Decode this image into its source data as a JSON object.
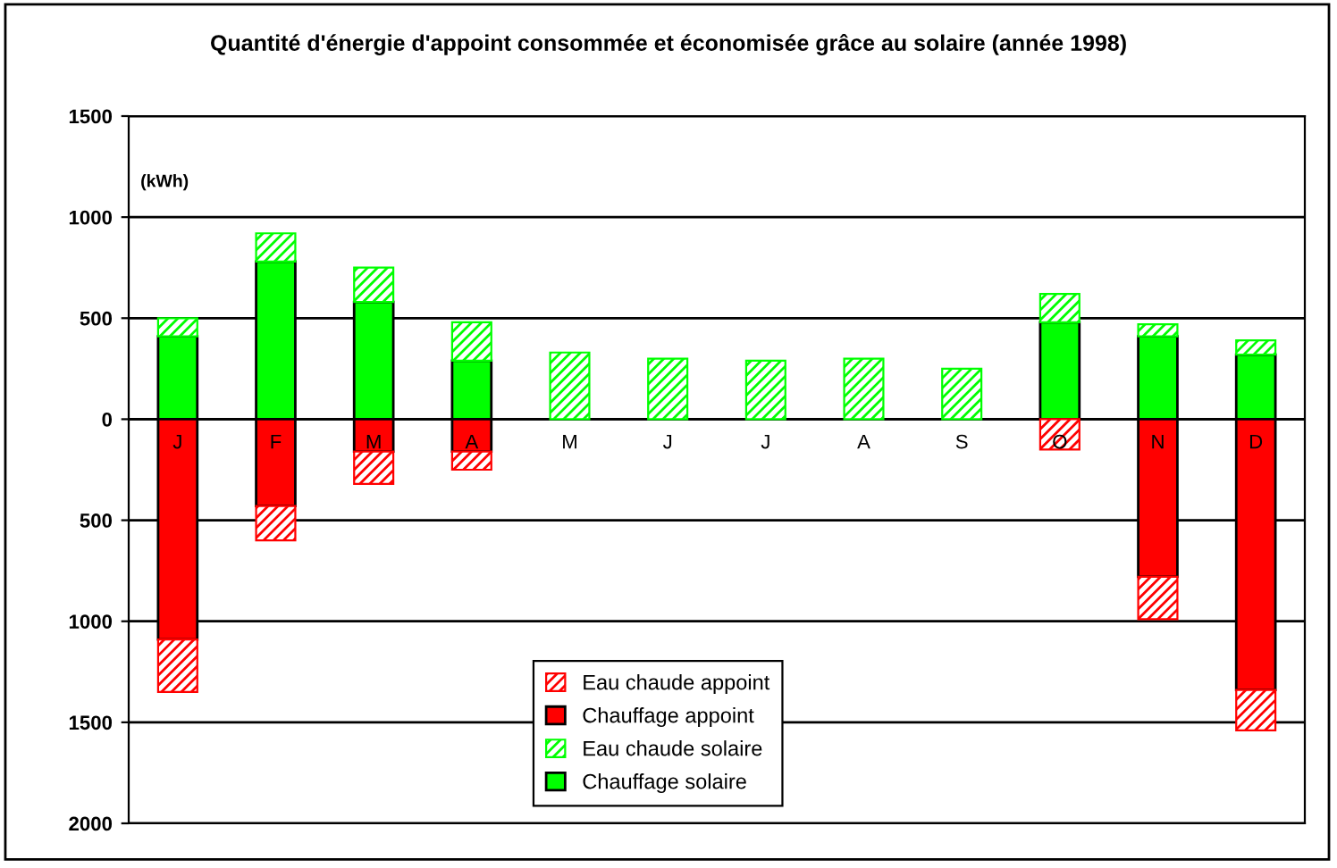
{
  "chart_data": {
    "type": "bar",
    "title": "Quantité d'énergie d'appoint consommée et économisée grâce au solaire (année 1998)",
    "ylabel": "(kWh)",
    "categories": [
      "J",
      "F",
      "M",
      "A",
      "M",
      "J",
      "J",
      "A",
      "S",
      "O",
      "N",
      "D"
    ],
    "stacked": true,
    "series": [
      {
        "name": "Chauffage solaire",
        "color": "#00ff00",
        "values": [
          410,
          780,
          580,
          290,
          null,
          null,
          null,
          null,
          null,
          480,
          410,
          320
        ]
      },
      {
        "name": "Eau chaude solaire",
        "color": "#00ff00",
        "values": [
          90,
          140,
          170,
          190,
          330,
          300,
          290,
          300,
          250,
          140,
          60,
          70
        ]
      },
      {
        "name": "Chauffage appoint",
        "color": "#ff0000",
        "values": [
          -1090,
          -430,
          -160,
          -160,
          null,
          null,
          null,
          null,
          null,
          null,
          -780,
          -1340
        ]
      },
      {
        "name": "Eau chaude appoint",
        "color": "#ff0000",
        "values": [
          -260,
          -170,
          -160,
          -90,
          null,
          null,
          null,
          null,
          null,
          -150,
          -210,
          -200
        ]
      }
    ],
    "ylim": [
      -2000,
      1500
    ],
    "yticks": [
      {
        "value": -2000,
        "label": "2000"
      },
      {
        "value": -1500,
        "label": "1500"
      },
      {
        "value": -1000,
        "label": "1000"
      },
      {
        "value": -500,
        "label": "500"
      },
      0,
      500,
      1000,
      1500
    ],
    "grid": "y",
    "legend": "bottom"
  }
}
